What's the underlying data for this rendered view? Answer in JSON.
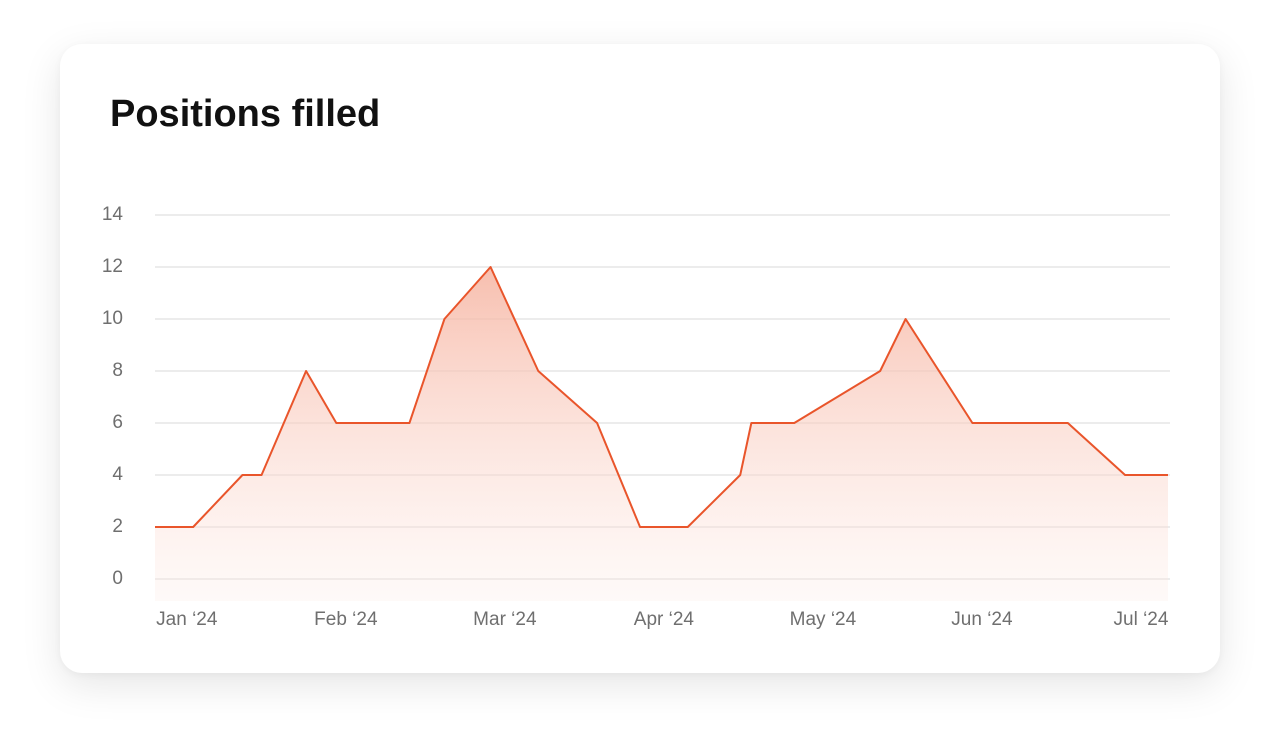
{
  "chart_data": {
    "type": "area",
    "title": "Positions filled",
    "x": [
      -0.2,
      0.04,
      0.35,
      0.47,
      0.75,
      0.94,
      1.4,
      1.62,
      1.91,
      2.21,
      2.58,
      2.85,
      3.15,
      3.48,
      3.55,
      3.82,
      4.36,
      4.52,
      4.94,
      5.54,
      5.9,
      6.17
    ],
    "values": [
      2,
      2,
      4,
      4,
      8,
      6,
      6,
      10,
      12,
      8,
      6,
      2,
      2,
      4,
      6,
      6,
      8,
      10,
      6,
      6,
      4,
      4
    ],
    "color": "#e9552b",
    "xlim": [
      -0.2,
      6.17
    ],
    "xticks": [
      {
        "value": 0,
        "label": "Jan ‘24"
      },
      {
        "value": 1,
        "label": "Feb ‘24"
      },
      {
        "value": 2,
        "label": "Mar ‘24"
      },
      {
        "value": 3,
        "label": "Apr ‘24"
      },
      {
        "value": 4,
        "label": "May ‘24"
      },
      {
        "value": 5,
        "label": "Jun ‘24"
      },
      {
        "value": 6,
        "label": "Jul ‘24"
      }
    ],
    "ylim": [
      0,
      14
    ],
    "yticks": [
      0,
      2,
      4,
      6,
      8,
      10,
      12,
      14
    ],
    "grid": true
  }
}
